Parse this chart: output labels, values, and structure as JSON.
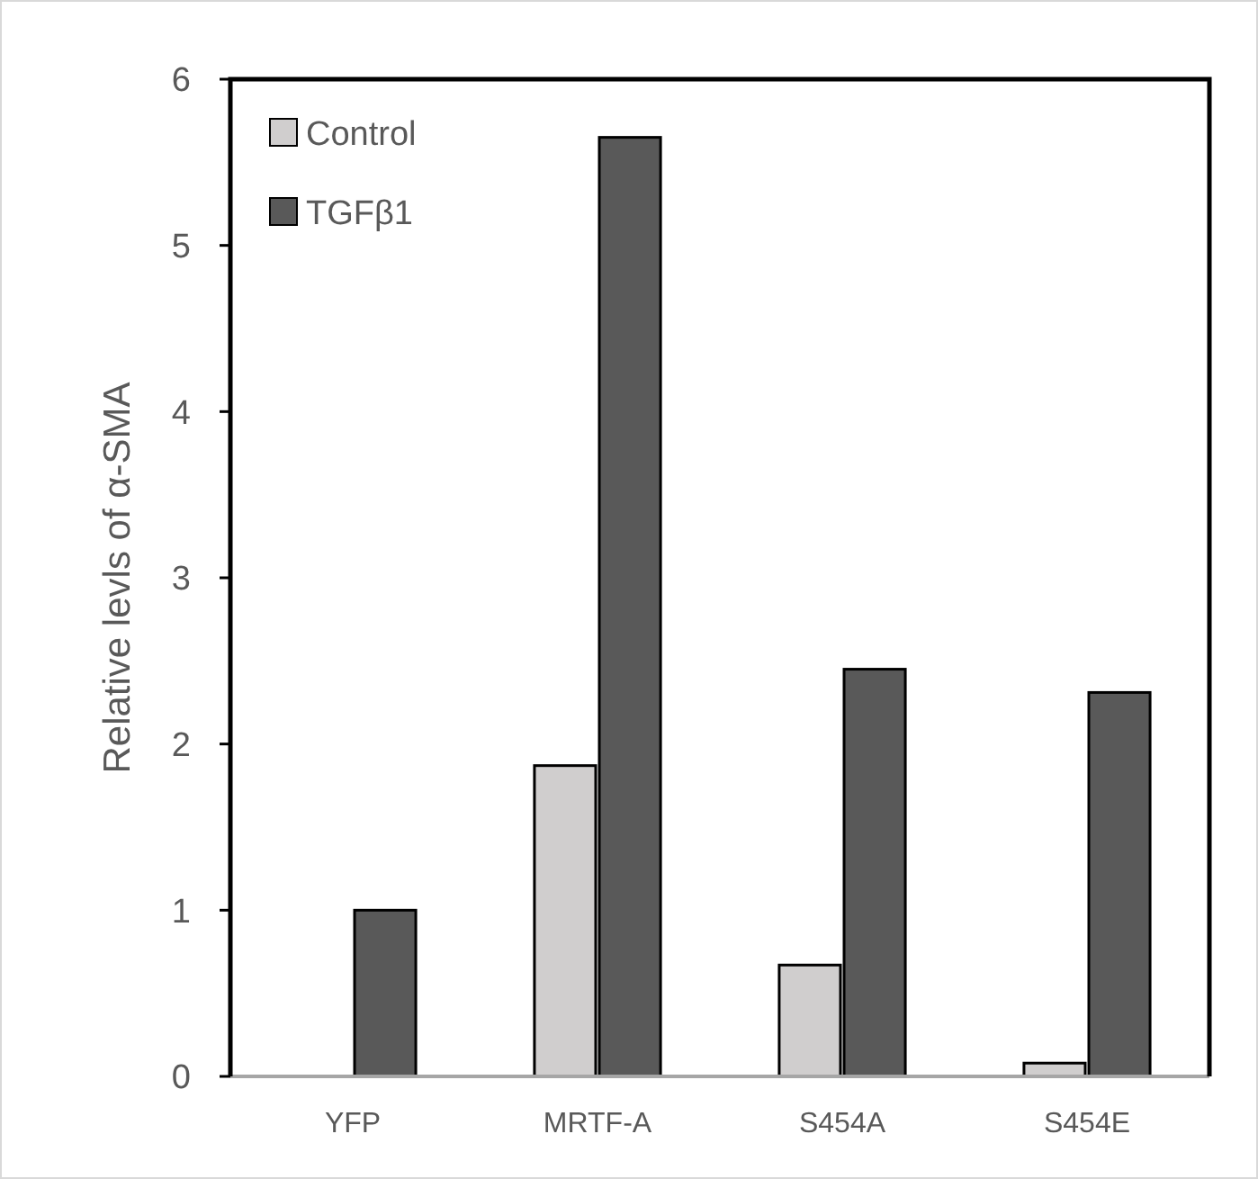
{
  "chart_data": {
    "type": "bar",
    "ylabel": "Relative levls of α-SMA",
    "categories": [
      "YFP",
      "MRTF-A",
      "S454A",
      "S454E"
    ],
    "series": [
      {
        "name": "Control",
        "color": "#d0cece",
        "values": [
          0,
          1.87,
          0.67,
          0.08
        ]
      },
      {
        "name": "TGFβ1",
        "color": "#595959",
        "values": [
          1,
          5.65,
          2.45,
          2.31
        ]
      }
    ],
    "ylim": [
      0,
      6
    ],
    "yticks": [
      0,
      1,
      2,
      3,
      4,
      5,
      6
    ],
    "legend": "top left",
    "grid": false
  }
}
